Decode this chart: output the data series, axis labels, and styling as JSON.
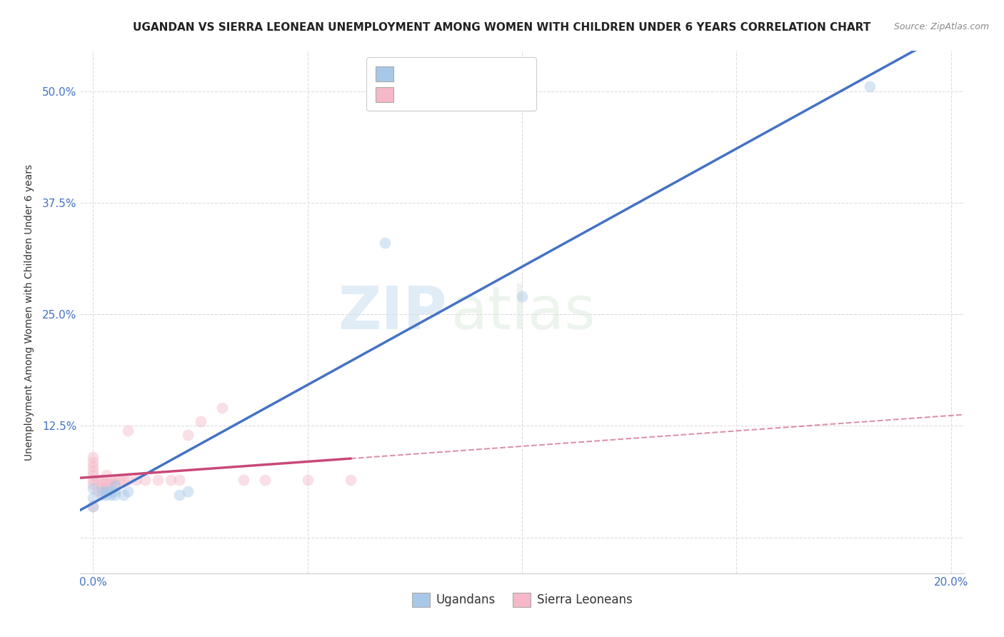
{
  "title": "UGANDAN VS SIERRA LEONEAN UNEMPLOYMENT AMONG WOMEN WITH CHILDREN UNDER 6 YEARS CORRELATION CHART",
  "source": "Source: ZipAtlas.com",
  "ylabel": "Unemployment Among Women with Children Under 6 years",
  "xlim": [
    -0.003,
    0.203
  ],
  "ylim": [
    -0.04,
    0.545
  ],
  "xticks": [
    0.0,
    0.05,
    0.1,
    0.15,
    0.2
  ],
  "xtick_labels": [
    "0.0%",
    "",
    "",
    "",
    "20.0%"
  ],
  "yticks": [
    0.0,
    0.125,
    0.25,
    0.375,
    0.5
  ],
  "ytick_labels": [
    "",
    "12.5%",
    "25.0%",
    "37.5%",
    "50.0%"
  ],
  "background_color": "#ffffff",
  "grid_color": "#dddddd",
  "ugandan_color": "#a8c8e8",
  "ugandan_line_color": "#4472c4",
  "sierra_color": "#f4b8c8",
  "sierra_line_color": "#c84878",
  "ugandan_x": [
    0.0,
    0.0,
    0.0,
    0.002,
    0.002,
    0.003,
    0.003,
    0.004,
    0.004,
    0.005,
    0.005,
    0.005,
    0.007,
    0.008,
    0.02,
    0.022,
    0.068,
    0.1,
    0.181
  ],
  "ugandan_y": [
    0.055,
    0.045,
    0.035,
    0.048,
    0.052,
    0.048,
    0.052,
    0.048,
    0.052,
    0.048,
    0.052,
    0.058,
    0.048,
    0.052,
    0.048,
    0.052,
    0.33,
    0.27,
    0.505
  ],
  "sierra_x": [
    0.0,
    0.0,
    0.0,
    0.0,
    0.0,
    0.0,
    0.0,
    0.0,
    0.001,
    0.001,
    0.002,
    0.002,
    0.002,
    0.003,
    0.003,
    0.003,
    0.004,
    0.004,
    0.005,
    0.005,
    0.006,
    0.007,
    0.008,
    0.008,
    0.01,
    0.012,
    0.015,
    0.018,
    0.02,
    0.022,
    0.025,
    0.03,
    0.035,
    0.04,
    0.05,
    0.06
  ],
  "sierra_y": [
    0.09,
    0.085,
    0.08,
    0.075,
    0.07,
    0.065,
    0.06,
    0.035,
    0.065,
    0.052,
    0.055,
    0.06,
    0.065,
    0.055,
    0.06,
    0.07,
    0.06,
    0.065,
    0.06,
    0.065,
    0.065,
    0.065,
    0.065,
    0.12,
    0.065,
    0.065,
    0.065,
    0.065,
    0.065,
    0.115,
    0.13,
    0.145,
    0.065,
    0.065,
    0.065,
    0.065
  ],
  "marker_size": 130,
  "marker_alpha": 0.45,
  "watermark_zip": "ZIP",
  "watermark_atlas": "atlas",
  "title_fontsize": 11,
  "axis_label_fontsize": 10,
  "tick_fontsize": 11,
  "legend_fontsize": 13
}
